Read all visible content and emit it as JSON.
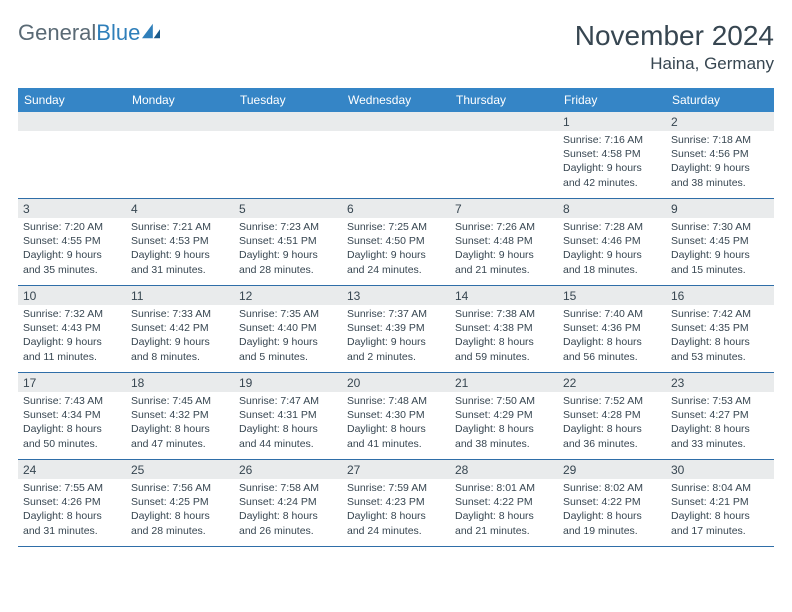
{
  "brand": {
    "text_general": "General",
    "text_blue": "Blue"
  },
  "title": "November 2024",
  "location": "Haina, Germany",
  "colors": {
    "header_bg": "#3585c6",
    "header_text": "#ffffff",
    "daynum_bg": "#e9ebec",
    "text": "#374651",
    "border": "#2f6ea8",
    "logo_gray": "#5a6a75",
    "logo_blue": "#2f7fba"
  },
  "weekdays": [
    "Sunday",
    "Monday",
    "Tuesday",
    "Wednesday",
    "Thursday",
    "Friday",
    "Saturday"
  ],
  "weeks": [
    [
      null,
      null,
      null,
      null,
      null,
      {
        "n": "1",
        "sr": "7:16 AM",
        "ss": "4:58 PM",
        "dl": "9 hours and 42 minutes."
      },
      {
        "n": "2",
        "sr": "7:18 AM",
        "ss": "4:56 PM",
        "dl": "9 hours and 38 minutes."
      }
    ],
    [
      {
        "n": "3",
        "sr": "7:20 AM",
        "ss": "4:55 PM",
        "dl": "9 hours and 35 minutes."
      },
      {
        "n": "4",
        "sr": "7:21 AM",
        "ss": "4:53 PM",
        "dl": "9 hours and 31 minutes."
      },
      {
        "n": "5",
        "sr": "7:23 AM",
        "ss": "4:51 PM",
        "dl": "9 hours and 28 minutes."
      },
      {
        "n": "6",
        "sr": "7:25 AM",
        "ss": "4:50 PM",
        "dl": "9 hours and 24 minutes."
      },
      {
        "n": "7",
        "sr": "7:26 AM",
        "ss": "4:48 PM",
        "dl": "9 hours and 21 minutes."
      },
      {
        "n": "8",
        "sr": "7:28 AM",
        "ss": "4:46 PM",
        "dl": "9 hours and 18 minutes."
      },
      {
        "n": "9",
        "sr": "7:30 AM",
        "ss": "4:45 PM",
        "dl": "9 hours and 15 minutes."
      }
    ],
    [
      {
        "n": "10",
        "sr": "7:32 AM",
        "ss": "4:43 PM",
        "dl": "9 hours and 11 minutes."
      },
      {
        "n": "11",
        "sr": "7:33 AM",
        "ss": "4:42 PM",
        "dl": "9 hours and 8 minutes."
      },
      {
        "n": "12",
        "sr": "7:35 AM",
        "ss": "4:40 PM",
        "dl": "9 hours and 5 minutes."
      },
      {
        "n": "13",
        "sr": "7:37 AM",
        "ss": "4:39 PM",
        "dl": "9 hours and 2 minutes."
      },
      {
        "n": "14",
        "sr": "7:38 AM",
        "ss": "4:38 PM",
        "dl": "8 hours and 59 minutes."
      },
      {
        "n": "15",
        "sr": "7:40 AM",
        "ss": "4:36 PM",
        "dl": "8 hours and 56 minutes."
      },
      {
        "n": "16",
        "sr": "7:42 AM",
        "ss": "4:35 PM",
        "dl": "8 hours and 53 minutes."
      }
    ],
    [
      {
        "n": "17",
        "sr": "7:43 AM",
        "ss": "4:34 PM",
        "dl": "8 hours and 50 minutes."
      },
      {
        "n": "18",
        "sr": "7:45 AM",
        "ss": "4:32 PM",
        "dl": "8 hours and 47 minutes."
      },
      {
        "n": "19",
        "sr": "7:47 AM",
        "ss": "4:31 PM",
        "dl": "8 hours and 44 minutes."
      },
      {
        "n": "20",
        "sr": "7:48 AM",
        "ss": "4:30 PM",
        "dl": "8 hours and 41 minutes."
      },
      {
        "n": "21",
        "sr": "7:50 AM",
        "ss": "4:29 PM",
        "dl": "8 hours and 38 minutes."
      },
      {
        "n": "22",
        "sr": "7:52 AM",
        "ss": "4:28 PM",
        "dl": "8 hours and 36 minutes."
      },
      {
        "n": "23",
        "sr": "7:53 AM",
        "ss": "4:27 PM",
        "dl": "8 hours and 33 minutes."
      }
    ],
    [
      {
        "n": "24",
        "sr": "7:55 AM",
        "ss": "4:26 PM",
        "dl": "8 hours and 31 minutes."
      },
      {
        "n": "25",
        "sr": "7:56 AM",
        "ss": "4:25 PM",
        "dl": "8 hours and 28 minutes."
      },
      {
        "n": "26",
        "sr": "7:58 AM",
        "ss": "4:24 PM",
        "dl": "8 hours and 26 minutes."
      },
      {
        "n": "27",
        "sr": "7:59 AM",
        "ss": "4:23 PM",
        "dl": "8 hours and 24 minutes."
      },
      {
        "n": "28",
        "sr": "8:01 AM",
        "ss": "4:22 PM",
        "dl": "8 hours and 21 minutes."
      },
      {
        "n": "29",
        "sr": "8:02 AM",
        "ss": "4:22 PM",
        "dl": "8 hours and 19 minutes."
      },
      {
        "n": "30",
        "sr": "8:04 AM",
        "ss": "4:21 PM",
        "dl": "8 hours and 17 minutes."
      }
    ]
  ],
  "labels": {
    "sunrise": "Sunrise:",
    "sunset": "Sunset:",
    "daylight": "Daylight:"
  }
}
